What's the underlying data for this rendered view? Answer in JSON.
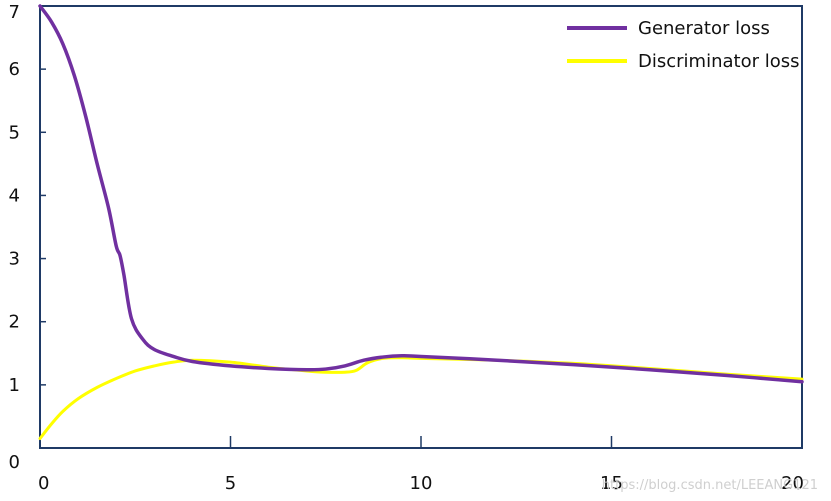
{
  "chart_data": {
    "type": "line",
    "title": "",
    "xlabel": "",
    "ylabel": "",
    "xlim": [
      0,
      20
    ],
    "ylim": [
      0,
      7
    ],
    "grid": false,
    "legend_position": "top-right",
    "x_ticks": [
      0,
      5,
      10,
      15,
      20
    ],
    "y_ticks": [
      0,
      1,
      2,
      3,
      4,
      5,
      6,
      7
    ],
    "colors": {
      "axes": "#1f3a66",
      "generator": "#7030a0",
      "discriminator": "#ffff00"
    },
    "series": [
      {
        "name": "Generator loss",
        "color": "#7030a0",
        "x": [
          0,
          0.3,
          0.6,
          0.9,
          1.2,
          1.5,
          1.8,
          2.0,
          2.1,
          2.2,
          2.4,
          2.7,
          3.0,
          3.5,
          4.0,
          5.0,
          6.0,
          7.0,
          7.5,
          8.0,
          8.5,
          9.0,
          9.5,
          10.0,
          12.0,
          14.0,
          16.0,
          18.0,
          20.0
        ],
        "values": [
          7.0,
          6.75,
          6.4,
          5.9,
          5.25,
          4.5,
          3.8,
          3.2,
          3.05,
          2.75,
          2.05,
          1.72,
          1.56,
          1.45,
          1.37,
          1.3,
          1.26,
          1.24,
          1.25,
          1.3,
          1.39,
          1.44,
          1.46,
          1.45,
          1.39,
          1.32,
          1.24,
          1.15,
          1.05
        ]
      },
      {
        "name": "Discriminator loss",
        "color": "#ffff00",
        "x": [
          0,
          0.3,
          0.6,
          1.0,
          1.5,
          2.0,
          2.5,
          3.0,
          3.5,
          4.0,
          5.0,
          6.0,
          7.0,
          7.5,
          8.0,
          8.3,
          8.6,
          9.0,
          9.5,
          10.0,
          12.0,
          14.0,
          16.0,
          18.0,
          20.0
        ],
        "values": [
          0.15,
          0.38,
          0.58,
          0.78,
          0.96,
          1.1,
          1.22,
          1.3,
          1.36,
          1.39,
          1.36,
          1.28,
          1.22,
          1.2,
          1.2,
          1.23,
          1.35,
          1.42,
          1.43,
          1.42,
          1.39,
          1.34,
          1.26,
          1.17,
          1.09
        ]
      }
    ]
  },
  "watermark": "https://blog.csdn.net/LEEANG121"
}
